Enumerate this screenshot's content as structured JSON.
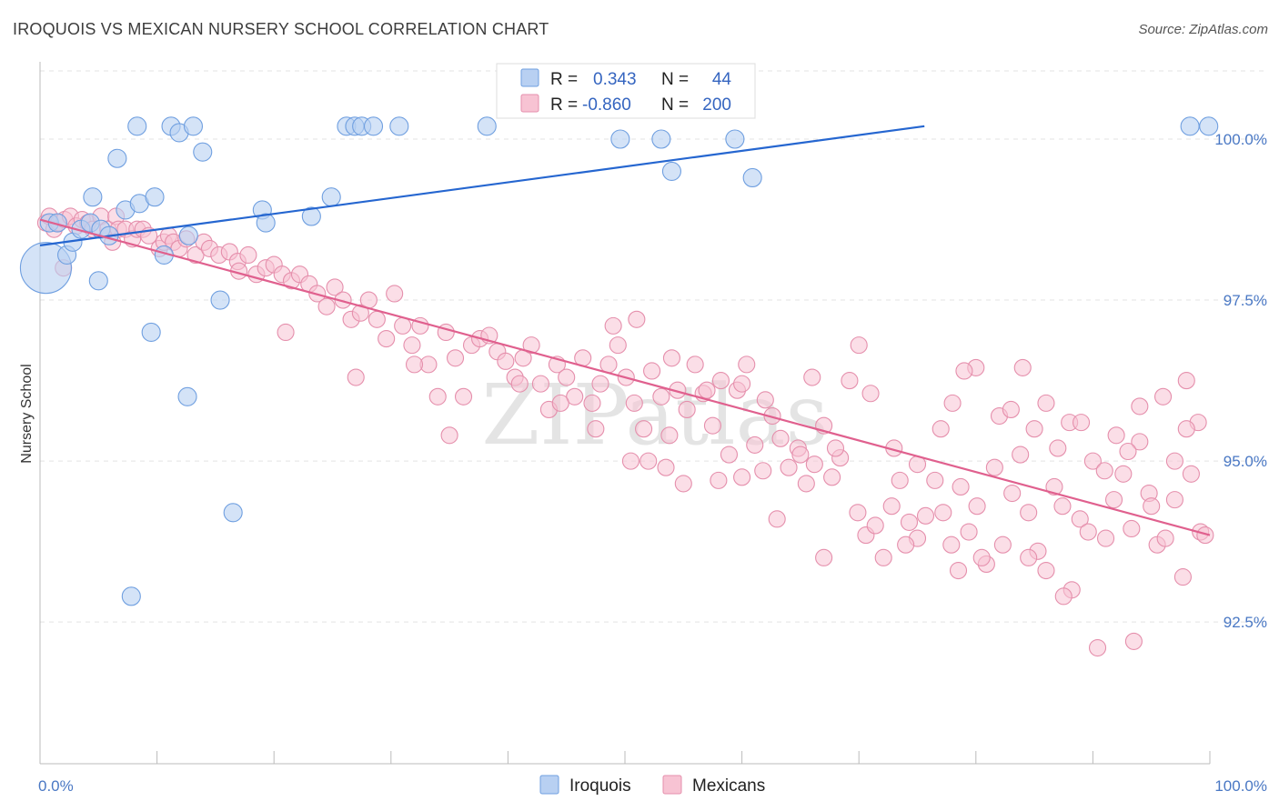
{
  "header": {
    "title": "IROQUOIS VS MEXICAN NURSERY SCHOOL CORRELATION CHART",
    "source": "Source: ZipAtlas.com"
  },
  "watermark": "ZIPatlas",
  "colors": {
    "iroquois_fill": "#b8d0f2",
    "iroquois_stroke": "#6f9fe0",
    "iroquois_line": "#2566d0",
    "mexicans_fill": "#f7c3d3",
    "mexicans_stroke": "#e58fac",
    "mexicans_line": "#e0608e",
    "tick_text": "#4a78c4",
    "grid": "#e3e3e3"
  },
  "legend": {
    "r_label": "R =",
    "n_label": "N =",
    "iroquois": {
      "r": "0.343",
      "n": "44"
    },
    "mexicans": {
      "r": "-0.860",
      "n": "200"
    }
  },
  "chart_data": {
    "type": "scatter",
    "title": "IROQUOIS VS MEXICAN NURSERY SCHOOL CORRELATION CHART",
    "xlabel": "",
    "ylabel": "Nursery School",
    "xlim": [
      0,
      100
    ],
    "ylim": [
      90.3,
      101.2
    ],
    "x_tick_labels": [
      "0.0%",
      "100.0%"
    ],
    "y_ticks": [
      92.5,
      95.0,
      97.5,
      100.0
    ],
    "y_tick_labels": [
      "92.5%",
      "95.0%",
      "97.5%",
      "100.0%"
    ],
    "legend_position": "top-center",
    "series": [
      {
        "name": "Iroquois",
        "r": 0.343,
        "n": 44,
        "trend": {
          "x": [
            0,
            75.6
          ],
          "y": [
            98.35,
            100.2
          ]
        },
        "points": [
          [
            0.5,
            98.0,
            28
          ],
          [
            0.8,
            98.7,
            10
          ],
          [
            1.5,
            98.7,
            10
          ],
          [
            2.3,
            98.2,
            10
          ],
          [
            2.8,
            98.4,
            10
          ],
          [
            3.5,
            98.6,
            10
          ],
          [
            4.3,
            98.7,
            10
          ],
          [
            4.5,
            99.1,
            10
          ],
          [
            5.0,
            97.8,
            10
          ],
          [
            5.2,
            98.6,
            10
          ],
          [
            5.9,
            98.5,
            10
          ],
          [
            6.6,
            99.7,
            10
          ],
          [
            7.3,
            98.9,
            10
          ],
          [
            7.8,
            92.9,
            10
          ],
          [
            8.3,
            100.2,
            10
          ],
          [
            8.5,
            99.0,
            10
          ],
          [
            9.5,
            97.0,
            10
          ],
          [
            9.8,
            99.1,
            10
          ],
          [
            10.6,
            98.2,
            10
          ],
          [
            11.2,
            100.2,
            10
          ],
          [
            11.9,
            100.1,
            10
          ],
          [
            12.6,
            96.0,
            10
          ],
          [
            12.7,
            98.5,
            10
          ],
          [
            13.1,
            100.2,
            10
          ],
          [
            13.9,
            99.8,
            10
          ],
          [
            15.4,
            97.5,
            10
          ],
          [
            16.5,
            94.2,
            10
          ],
          [
            19.0,
            98.9,
            10
          ],
          [
            19.3,
            98.7,
            10
          ],
          [
            23.2,
            98.8,
            10
          ],
          [
            24.9,
            99.1,
            10
          ],
          [
            26.2,
            100.2,
            10
          ],
          [
            26.9,
            100.2,
            10
          ],
          [
            27.5,
            100.2,
            10
          ],
          [
            28.5,
            100.2,
            10
          ],
          [
            30.7,
            100.2,
            10
          ],
          [
            38.2,
            100.2,
            10
          ],
          [
            49.6,
            100.0,
            10
          ],
          [
            53.1,
            100.0,
            10
          ],
          [
            54.0,
            99.5,
            10
          ],
          [
            59.4,
            100.0,
            10
          ],
          [
            60.9,
            99.4,
            10
          ],
          [
            98.3,
            100.2,
            10
          ],
          [
            99.9,
            100.2,
            10
          ]
        ]
      },
      {
        "name": "Mexicans",
        "r": -0.86,
        "n": 200,
        "trend": {
          "x": [
            0,
            100
          ],
          "y": [
            98.75,
            93.85
          ]
        },
        "points": [
          [
            0.5,
            98.7
          ],
          [
            0.8,
            98.8
          ],
          [
            1.2,
            98.6
          ],
          [
            1.6,
            98.7
          ],
          [
            2.1,
            98.75
          ],
          [
            2.6,
            98.8
          ],
          [
            3.1,
            98.65
          ],
          [
            3.6,
            98.75
          ],
          [
            4.1,
            98.7
          ],
          [
            4.5,
            98.6
          ],
          [
            5.2,
            98.8
          ],
          [
            5.8,
            98.6
          ],
          [
            6.2,
            98.4
          ],
          [
            6.5,
            98.8
          ],
          [
            6.7,
            98.6
          ],
          [
            7.3,
            98.6
          ],
          [
            7.9,
            98.45
          ],
          [
            8.3,
            98.6
          ],
          [
            8.8,
            98.6
          ],
          [
            9.3,
            98.5
          ],
          [
            10.2,
            98.3
          ],
          [
            10.6,
            98.4
          ],
          [
            11.0,
            98.5
          ],
          [
            11.4,
            98.4
          ],
          [
            11.9,
            98.3
          ],
          [
            12.5,
            98.45
          ],
          [
            13.3,
            98.2
          ],
          [
            14.0,
            98.4
          ],
          [
            14.5,
            98.3
          ],
          [
            15.3,
            98.2
          ],
          [
            16.2,
            98.25
          ],
          [
            16.9,
            98.1
          ],
          [
            17.8,
            98.2
          ],
          [
            18.5,
            97.9
          ],
          [
            19.3,
            98.0
          ],
          [
            20.0,
            98.05
          ],
          [
            20.7,
            97.9
          ],
          [
            21.5,
            97.8
          ],
          [
            22.2,
            97.9
          ],
          [
            23.0,
            97.75
          ],
          [
            23.7,
            97.6
          ],
          [
            24.5,
            97.4
          ],
          [
            25.2,
            97.7
          ],
          [
            25.9,
            97.5
          ],
          [
            26.6,
            97.2
          ],
          [
            27.4,
            97.3
          ],
          [
            28.1,
            97.5
          ],
          [
            28.8,
            97.2
          ],
          [
            29.6,
            96.9
          ],
          [
            30.3,
            97.6
          ],
          [
            31.0,
            97.1
          ],
          [
            31.8,
            96.8
          ],
          [
            32.5,
            97.1
          ],
          [
            33.2,
            96.5
          ],
          [
            34.0,
            96.0
          ],
          [
            34.7,
            97.0
          ],
          [
            35.5,
            96.6
          ],
          [
            36.2,
            96.0
          ],
          [
            36.9,
            96.8
          ],
          [
            37.6,
            96.9
          ],
          [
            38.4,
            96.95
          ],
          [
            39.1,
            96.7
          ],
          [
            39.8,
            96.55
          ],
          [
            40.6,
            96.3
          ],
          [
            41.3,
            96.6
          ],
          [
            42.0,
            96.8
          ],
          [
            42.8,
            96.2
          ],
          [
            43.5,
            95.8
          ],
          [
            44.2,
            96.5
          ],
          [
            45.0,
            96.3
          ],
          [
            45.7,
            96.0
          ],
          [
            46.4,
            96.6
          ],
          [
            47.2,
            95.9
          ],
          [
            47.9,
            96.2
          ],
          [
            48.6,
            96.5
          ],
          [
            49.4,
            96.8
          ],
          [
            50.1,
            96.3
          ],
          [
            50.8,
            95.9
          ],
          [
            51.6,
            95.5
          ],
          [
            52.3,
            96.4
          ],
          [
            53.1,
            96.0
          ],
          [
            53.8,
            95.4
          ],
          [
            54.5,
            96.1
          ],
          [
            55.3,
            95.8
          ],
          [
            56.0,
            96.5
          ],
          [
            56.7,
            96.05
          ],
          [
            57.5,
            95.55
          ],
          [
            58.2,
            96.25
          ],
          [
            58.9,
            95.1
          ],
          [
            59.6,
            96.1
          ],
          [
            60.4,
            96.5
          ],
          [
            61.1,
            95.25
          ],
          [
            61.8,
            94.85
          ],
          [
            62.6,
            95.7
          ],
          [
            63.3,
            95.35
          ],
          [
            64.0,
            94.9
          ],
          [
            64.8,
            95.2
          ],
          [
            65.5,
            94.65
          ],
          [
            66.2,
            94.95
          ],
          [
            67.0,
            95.55
          ],
          [
            67.7,
            94.75
          ],
          [
            68.4,
            95.05
          ],
          [
            69.2,
            96.25
          ],
          [
            69.9,
            94.2
          ],
          [
            70.6,
            93.85
          ],
          [
            71.4,
            94.0
          ],
          [
            72.1,
            93.5
          ],
          [
            72.8,
            94.3
          ],
          [
            73.5,
            94.7
          ],
          [
            74.3,
            94.05
          ],
          [
            75.0,
            93.8
          ],
          [
            75.7,
            94.15
          ],
          [
            76.5,
            94.7
          ],
          [
            77.2,
            94.2
          ],
          [
            77.9,
            93.7
          ],
          [
            78.7,
            94.6
          ],
          [
            79.4,
            93.9
          ],
          [
            80.1,
            94.3
          ],
          [
            80.9,
            93.4
          ],
          [
            81.6,
            94.9
          ],
          [
            82.3,
            93.7
          ],
          [
            83.1,
            94.5
          ],
          [
            83.8,
            95.1
          ],
          [
            84.5,
            94.2
          ],
          [
            85.3,
            93.6
          ],
          [
            86.0,
            93.3
          ],
          [
            86.7,
            94.6
          ],
          [
            87.4,
            94.3
          ],
          [
            88.2,
            93.0
          ],
          [
            88.9,
            94.1
          ],
          [
            89.6,
            93.9
          ],
          [
            90.4,
            92.1
          ],
          [
            91.1,
            93.8
          ],
          [
            91.8,
            94.4
          ],
          [
            92.6,
            94.8
          ],
          [
            93.3,
            93.95
          ],
          [
            94.0,
            95.3
          ],
          [
            94.8,
            94.5
          ],
          [
            95.5,
            93.7
          ],
          [
            96.2,
            93.8
          ],
          [
            97.0,
            94.4
          ],
          [
            97.7,
            93.2
          ],
          [
            98.4,
            94.8
          ],
          [
            99.2,
            93.9
          ],
          [
            99.6,
            93.85
          ],
          [
            52.0,
            95.0
          ],
          [
            55.0,
            94.65
          ],
          [
            60.0,
            94.75
          ],
          [
            65.0,
            95.1
          ],
          [
            68.0,
            95.2
          ],
          [
            71.0,
            96.05
          ],
          [
            75.0,
            94.95
          ],
          [
            78.0,
            95.9
          ],
          [
            80.0,
            96.45
          ],
          [
            82.0,
            95.7
          ],
          [
            84.0,
            96.45
          ],
          [
            86.0,
            95.9
          ],
          [
            88.0,
            95.6
          ],
          [
            90.0,
            95.0
          ],
          [
            92.0,
            95.4
          ],
          [
            94.0,
            95.85
          ],
          [
            96.0,
            96.0
          ],
          [
            98.0,
            96.25
          ],
          [
            99.0,
            95.6
          ],
          [
            49.0,
            97.1
          ],
          [
            51.0,
            97.2
          ],
          [
            54.0,
            96.6
          ],
          [
            57.0,
            96.1
          ],
          [
            60.0,
            96.2
          ],
          [
            62.0,
            95.95
          ],
          [
            66.0,
            96.3
          ],
          [
            70.0,
            96.8
          ],
          [
            73.0,
            95.2
          ],
          [
            77.0,
            95.5
          ],
          [
            79.0,
            96.4
          ],
          [
            83.0,
            95.8
          ],
          [
            85.0,
            95.5
          ],
          [
            87.0,
            95.2
          ],
          [
            89.0,
            95.6
          ],
          [
            91.0,
            94.85
          ],
          [
            93.0,
            95.15
          ],
          [
            95.0,
            94.3
          ],
          [
            97.0,
            95.0
          ],
          [
            98.0,
            95.5
          ],
          [
            41.0,
            96.2
          ],
          [
            44.5,
            95.9
          ],
          [
            47.5,
            95.5
          ],
          [
            50.5,
            95.0
          ],
          [
            53.5,
            94.9
          ],
          [
            58.0,
            94.7
          ],
          [
            63.0,
            94.1
          ],
          [
            67.0,
            93.5
          ],
          [
            74.0,
            93.7
          ],
          [
            78.5,
            93.3
          ],
          [
            80.5,
            93.5
          ],
          [
            84.5,
            93.5
          ],
          [
            87.5,
            92.9
          ],
          [
            93.5,
            92.2
          ],
          [
            2.0,
            98.0
          ],
          [
            17.0,
            97.95
          ],
          [
            21.0,
            97.0
          ],
          [
            27.0,
            96.3
          ],
          [
            32.0,
            96.5
          ],
          [
            35.0,
            95.4
          ]
        ]
      }
    ]
  },
  "bottom_legend": {
    "iroquois": "Iroquois",
    "mexicans": "Mexicans"
  }
}
